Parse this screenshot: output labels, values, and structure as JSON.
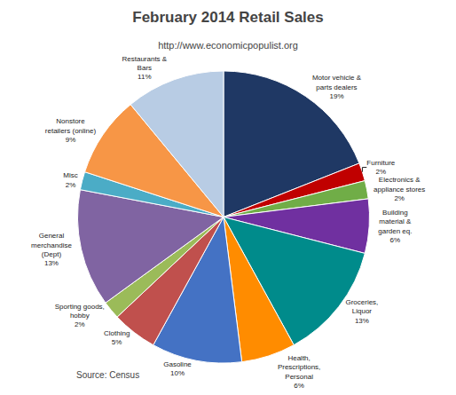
{
  "chart_data": {
    "type": "pie",
    "title": "February 2014 Retail Sales",
    "subtitle": "http://www.economicpopulist.org",
    "annotations": [
      "Source: Census"
    ],
    "categories": [
      "Motor vehicle &\nparts dealers\n19%",
      "Furniture\n2%",
      "Electronics &\nappliance stores\n2%",
      "Building\nmaterial &\ngarden eq.\n6%",
      "Groceries,\nLiquor\n13%",
      "Health,\nPrescriptions,\nPersonal\n6%",
      "Gasoline\n10%",
      "Clothing\n5%",
      "Sporting goods,\nhobby\n2%",
      "General\nmerchandise\n(Dept)\n13%",
      "Misc\n2%",
      "Nonstore\nretailers (online)\n9%",
      "Restaurants &\nBars\n11%"
    ],
    "values": [
      19,
      2,
      2,
      6,
      13,
      6,
      10,
      5,
      2,
      13,
      2,
      9,
      11
    ],
    "colors": [
      "#1F3864",
      "#C00000",
      "#70AD47",
      "#7030A0",
      "#008B8B",
      "#FF8C00",
      "#4472C4",
      "#C0504D",
      "#9BBB59",
      "#8064A2",
      "#4BACC6",
      "#F79646",
      "#B8CCE4"
    ]
  }
}
